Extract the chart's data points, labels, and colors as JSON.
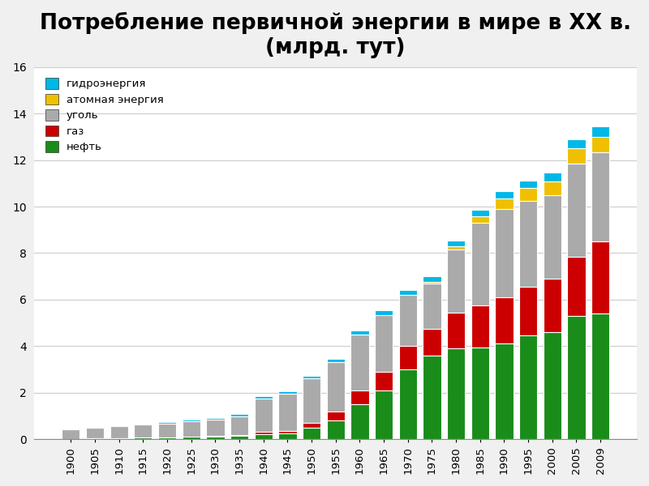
{
  "title": "Потребление первичной энергии в мире в XX в.\n(млрд. тут)",
  "years": [
    1900,
    1905,
    1910,
    1915,
    1920,
    1925,
    1930,
    1935,
    1940,
    1945,
    1950,
    1955,
    1960,
    1965,
    1970,
    1975,
    1980,
    1985,
    1990,
    1995,
    2000,
    2005,
    2009
  ],
  "нефть": [
    0.02,
    0.03,
    0.05,
    0.06,
    0.07,
    0.1,
    0.12,
    0.15,
    0.22,
    0.25,
    0.5,
    0.8,
    1.5,
    2.1,
    3.0,
    3.6,
    3.9,
    3.95,
    4.1,
    4.45,
    4.6,
    5.3,
    5.4
  ],
  "газ": [
    0.0,
    0.0,
    0.0,
    0.01,
    0.01,
    0.02,
    0.03,
    0.04,
    0.08,
    0.1,
    0.2,
    0.4,
    0.6,
    0.8,
    1.0,
    1.15,
    1.55,
    1.8,
    2.0,
    2.1,
    2.3,
    2.55,
    3.1
  ],
  "уголь": [
    0.4,
    0.45,
    0.52,
    0.55,
    0.6,
    0.65,
    0.7,
    0.8,
    1.45,
    1.6,
    1.9,
    2.1,
    2.4,
    2.45,
    2.2,
    1.95,
    2.7,
    3.55,
    3.8,
    3.7,
    3.6,
    4.0,
    3.85
  ],
  "атомная": [
    0.0,
    0.0,
    0.0,
    0.0,
    0.0,
    0.0,
    0.0,
    0.0,
    0.0,
    0.0,
    0.0,
    0.0,
    0.0,
    0.0,
    0.0,
    0.05,
    0.15,
    0.3,
    0.45,
    0.55,
    0.6,
    0.65,
    0.65
  ],
  "гидро": [
    0.02,
    0.03,
    0.04,
    0.05,
    0.05,
    0.06,
    0.07,
    0.08,
    0.1,
    0.1,
    0.12,
    0.14,
    0.18,
    0.2,
    0.22,
    0.25,
    0.25,
    0.28,
    0.3,
    0.33,
    0.35,
    0.4,
    0.45
  ],
  "color_нефть": "#1a8c1a",
  "color_газ": "#cc0000",
  "color_уголь": "#aaaaaa",
  "color_атомная": "#f0c000",
  "color_гидро": "#00b8e6",
  "ylim": [
    0,
    16
  ],
  "yticks": [
    0,
    2,
    4,
    6,
    8,
    10,
    12,
    14,
    16
  ],
  "legend_labels": [
    "гидроэнергия",
    "атомная энергия",
    "уголь",
    "газ",
    "нефть"
  ],
  "legend_colors": [
    "#00b8e6",
    "#f0c000",
    "#aaaaaa",
    "#cc0000",
    "#1a8c1a"
  ],
  "title_fontsize": 19,
  "bar_width": 0.75,
  "bg_color": "#f0f0f0",
  "plot_bg_color": "#ffffff"
}
